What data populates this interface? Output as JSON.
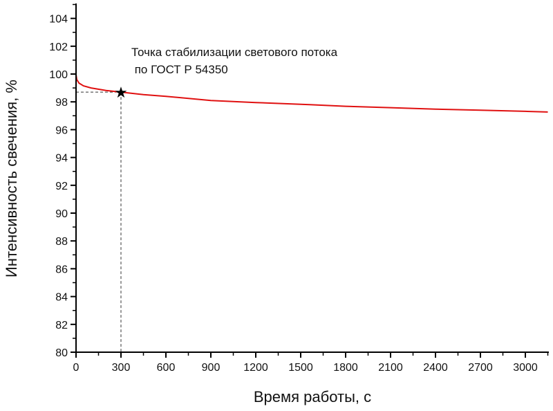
{
  "chart_data": {
    "type": "line",
    "title": "",
    "xlabel": "Время работы, с",
    "ylabel": "Интенсивность свечения, %",
    "xlim": [
      0,
      3150
    ],
    "ylim": [
      80,
      105
    ],
    "xticks": [
      0,
      300,
      600,
      900,
      1200,
      1500,
      1800,
      2100,
      2400,
      2700,
      3000
    ],
    "yticks": [
      80,
      82,
      84,
      86,
      88,
      90,
      92,
      94,
      96,
      98,
      100,
      102,
      104
    ],
    "grid": false,
    "series": [
      {
        "name": "Интенсивность свечения",
        "color": "#e01010",
        "x": [
          0,
          5,
          20,
          50,
          100,
          200,
          300,
          450,
          600,
          900,
          1200,
          1560,
          1800,
          2100,
          2400,
          2700,
          3000,
          3150
        ],
        "y": [
          99.95,
          99.6,
          99.35,
          99.15,
          99.0,
          98.82,
          98.7,
          98.52,
          98.4,
          98.1,
          97.95,
          97.8,
          97.68,
          97.58,
          97.48,
          97.4,
          97.32,
          97.27
        ]
      }
    ],
    "marker": {
      "x": 300,
      "y": 98.7,
      "symbol": "star"
    },
    "annotation": {
      "line1": "Точка стабилизации светового потока",
      "line2": " по ГОСТ Р 54350"
    }
  }
}
